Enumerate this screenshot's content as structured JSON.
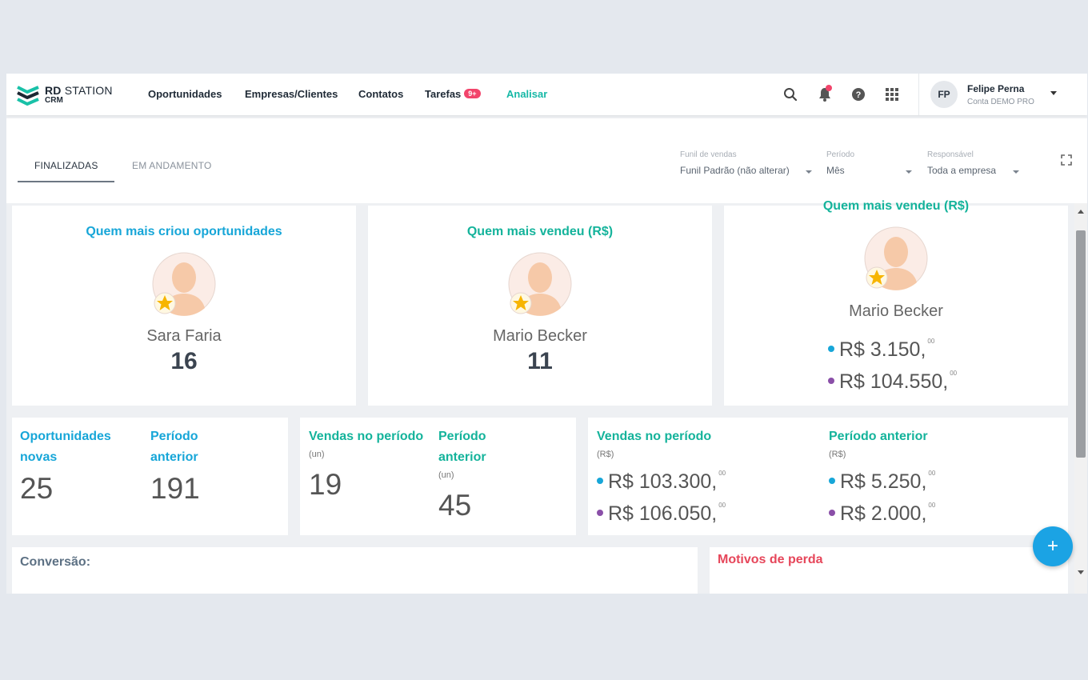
{
  "brand": {
    "name_bold": "RD",
    "name_rest": " STATION",
    "sub": "CRM"
  },
  "nav": {
    "items": [
      "Oportunidades",
      "Empresas/Clientes",
      "Contatos",
      "Tarefas"
    ],
    "tasks_badge": "9+",
    "active": "Analisar"
  },
  "header_icons": [
    "search-icon",
    "bell-icon",
    "help-icon",
    "apps-grid-icon"
  ],
  "user": {
    "initials": "FP",
    "name": "Felipe Perna",
    "account": "Conta DEMO PRO"
  },
  "tabs": {
    "finalizadas": "FINALIZADAS",
    "em_andamento": "EM ANDAMENTO"
  },
  "filters": {
    "funil": {
      "label": "Funil de vendas",
      "value": "Funil Padrão (não alterar)"
    },
    "periodo": {
      "label": "Período",
      "value": "Mês"
    },
    "responsavel": {
      "label": "Responsável",
      "value": "Toda a empresa"
    }
  },
  "leaders": {
    "criou": {
      "title": "Quem mais criou oportunidades",
      "name": "Sara Faria",
      "value": "16"
    },
    "vendeu_un": {
      "title": "Quem mais vendeu (R$)",
      "name": "Mario Becker",
      "value": "11"
    },
    "vendeu_rs": {
      "title": "Quem mais vendeu (R$)",
      "name": "Mario Becker",
      "amount1": "R$ 3.150,",
      "amount1_cents": "00",
      "amount2": "R$ 104.550,",
      "amount2_cents": "00"
    }
  },
  "stats": {
    "oport": {
      "label_line1": "Oportunidades",
      "label_line2": "novas",
      "value": "25",
      "prev_label_line1": "Período",
      "prev_label_line2": "anterior",
      "prev_value": "191"
    },
    "vendas_un": {
      "label": "Vendas no período",
      "unit": "(un)",
      "value": "19",
      "prev_label_line1": "Período",
      "prev_label_line2": "anterior",
      "prev_unit": "(un)",
      "prev_value": "45"
    },
    "vendas_rs": {
      "label": "Vendas no período",
      "unit": "(R$)",
      "v1": "R$ 103.300,",
      "v1_cents": "00",
      "v2": "R$ 106.050,",
      "v2_cents": "00",
      "prev_label": "Período anterior",
      "prev_unit": "(R$)",
      "p1": "R$ 5.250,",
      "p1_cents": "00",
      "p2": "R$ 2.000,",
      "p2_cents": "00"
    }
  },
  "sections": {
    "conversao": "Conversão:",
    "motivos": "Motivos de perda"
  },
  "fab": "+",
  "colors": {
    "teal": "#14b39b",
    "blue": "#17a6d8",
    "red": "#e6465a",
    "dot_blue": "#17a6d8",
    "dot_purple": "#8a4fa8"
  }
}
